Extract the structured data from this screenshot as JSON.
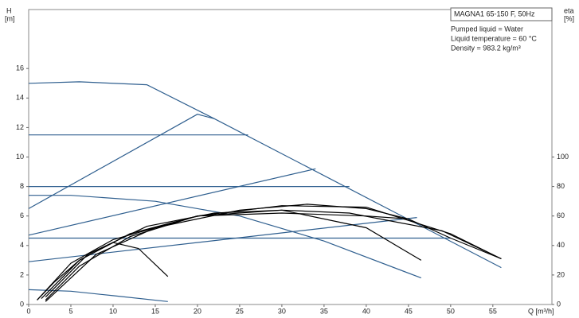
{
  "chart_data": {
    "type": "line",
    "info": [
      "MAGNA1 65-150 F, 50Hz",
      "Pumped liquid = Water",
      "Liquid temperature = 60 °C",
      "Density = 983.2 kg/m³"
    ],
    "ylabel": "H",
    "yunit": "[m]",
    "y2label": "eta",
    "y2unit": "[%]",
    "xlabel": "Q [m³/h]",
    "xlim": [
      0,
      62
    ],
    "xticks": [
      0,
      5,
      10,
      15,
      20,
      25,
      30,
      35,
      40,
      45,
      50,
      55
    ],
    "ylim": [
      0,
      20
    ],
    "yticks": [
      0,
      2,
      4,
      6,
      8,
      10,
      12,
      14,
      16
    ],
    "y2lim": [
      0,
      200
    ],
    "y2ticks": [
      0,
      20,
      40,
      60,
      80,
      100
    ],
    "series": [
      {
        "color": "#2f5f8f",
        "x": [
          0,
          6,
          14,
          22,
          56
        ],
        "values": [
          15,
          15.1,
          14.9,
          12.6,
          2.5
        ]
      },
      {
        "color": "#2f5f8f",
        "x": [
          0,
          20,
          22
        ],
        "values": [
          6.5,
          12.9,
          12.6
        ]
      },
      {
        "color": "#2f5f8f",
        "x": [
          0,
          26
        ],
        "values": [
          11.5,
          11.5
        ]
      },
      {
        "color": "#2f5f8f",
        "x": [
          0,
          38
        ],
        "values": [
          8,
          8
        ]
      },
      {
        "color": "#2f5f8f",
        "x": [
          0,
          50
        ],
        "values": [
          4.5,
          4.5
        ]
      },
      {
        "color": "#2f5f8f",
        "x": [
          0,
          34
        ],
        "values": [
          4.7,
          9.2
        ]
      },
      {
        "color": "#2f5f8f",
        "x": [
          0,
          46
        ],
        "values": [
          2.9,
          5.9
        ]
      },
      {
        "color": "#2f5f8f",
        "x": [
          0,
          5,
          15,
          25,
          35,
          46.5
        ],
        "values": [
          7.4,
          7.4,
          7,
          6,
          4.3,
          1.8
        ]
      },
      {
        "color": "#2f5f8f",
        "x": [
          0,
          5,
          10,
          16.5
        ],
        "values": [
          1,
          0.9,
          0.6,
          0.2
        ]
      },
      {
        "color": "#000000",
        "axis": "y2",
        "x": [
          1,
          3,
          6,
          10,
          13,
          16.5
        ],
        "values": [
          3,
          15,
          30,
          42,
          38,
          19
        ]
      },
      {
        "color": "#000000",
        "axis": "y2",
        "x": [
          1,
          5,
          10,
          20,
          30,
          40,
          46.5
        ],
        "values": [
          3,
          28,
          44,
          60,
          64,
          52,
          30
        ]
      },
      {
        "color": "#000000",
        "axis": "y2",
        "x": [
          2,
          6,
          12,
          20,
          30,
          40,
          50,
          56
        ],
        "values": [
          3,
          26,
          46,
          60,
          67,
          66,
          48,
          31
        ]
      },
      {
        "color": "#000000",
        "axis": "y2",
        "x": [
          2,
          8,
          15,
          25,
          33,
          40,
          45,
          50,
          56
        ],
        "values": [
          2,
          34,
          52,
          64,
          68,
          65,
          58,
          45,
          31
        ]
      },
      {
        "color": "#000000",
        "axis": "y2",
        "x": [
          1.5,
          6,
          12,
          20,
          30,
          40,
          45
        ],
        "values": [
          4,
          30,
          48,
          60,
          62,
          60,
          58
        ]
      },
      {
        "color": "#000000",
        "axis": "y2",
        "x": [
          2,
          7,
          14,
          22,
          30,
          38,
          49,
          56
        ],
        "values": [
          5,
          34,
          53,
          62,
          64,
          62,
          50,
          31
        ]
      }
    ]
  }
}
